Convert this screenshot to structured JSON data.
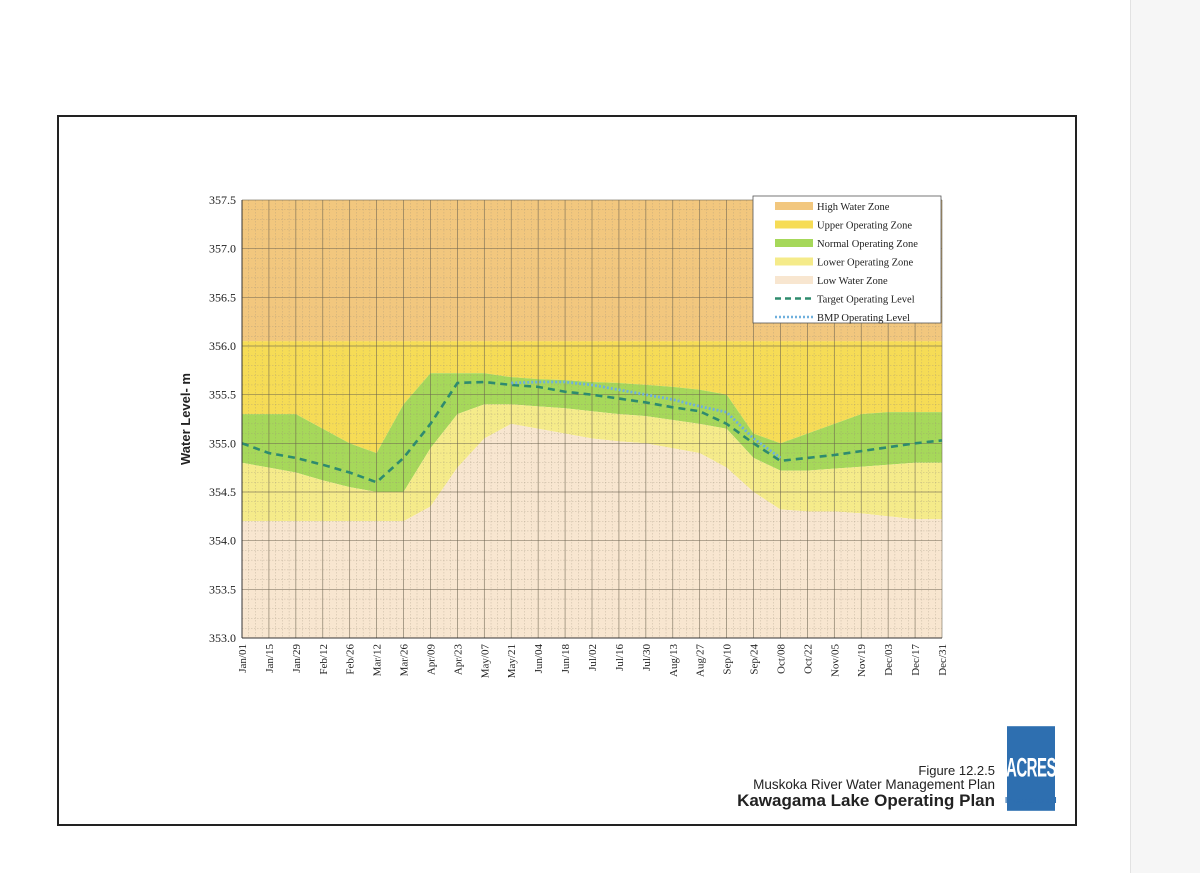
{
  "chart_data": {
    "type": "area",
    "ylabel": "Water Level- m",
    "ylim": [
      353.0,
      357.5
    ],
    "yticks": [
      "353.0",
      "353.5",
      "354.0",
      "354.5",
      "355.0",
      "355.5",
      "356.0",
      "356.5",
      "357.0",
      "357.5"
    ],
    "categories": [
      "Jan/01",
      "Jan/15",
      "Jan/29",
      "Feb/12",
      "Feb/26",
      "Mar/12",
      "Mar/26",
      "Apr/09",
      "Apr/23",
      "May/07",
      "May/21",
      "Jun/04",
      "Jun/18",
      "Jul/02",
      "Jul/16",
      "Jul/30",
      "Aug/13",
      "Aug/27",
      "Sep/10",
      "Sep/24",
      "Oct/08",
      "Oct/22",
      "Nov/05",
      "Nov/19",
      "Dec/03",
      "Dec/17",
      "Dec/31"
    ],
    "grid": true,
    "legend_position": "top-right",
    "zones": [
      {
        "name": "High Water Zone",
        "color": "#f2c77e",
        "lower": [
          356.05,
          356.05,
          356.05,
          356.05,
          356.05,
          356.05,
          356.05,
          356.05,
          356.05,
          356.05,
          356.05,
          356.05,
          356.05,
          356.05,
          356.05,
          356.05,
          356.05,
          356.05,
          356.05,
          356.05,
          356.05,
          356.05,
          356.05,
          356.05,
          356.05,
          356.05,
          356.05
        ]
      },
      {
        "name": "Upper Operating Zone",
        "color": "#f6dc56",
        "lower": [
          355.3,
          355.3,
          355.3,
          355.15,
          355.0,
          354.9,
          355.4,
          355.72,
          355.72,
          355.72,
          355.68,
          355.66,
          355.65,
          355.63,
          355.62,
          355.6,
          355.58,
          355.55,
          355.5,
          355.1,
          355.0,
          355.1,
          355.2,
          355.3,
          355.32,
          355.32,
          355.32
        ]
      },
      {
        "name": "Normal Operating Zone",
        "color": "#a6d85a",
        "lower": [
          354.8,
          354.75,
          354.7,
          354.62,
          354.55,
          354.5,
          354.5,
          354.95,
          355.3,
          355.4,
          355.4,
          355.38,
          355.36,
          355.33,
          355.3,
          355.28,
          355.24,
          355.2,
          355.15,
          354.85,
          354.72,
          354.72,
          354.74,
          354.76,
          354.78,
          354.8,
          354.8
        ]
      },
      {
        "name": "Lower Operating Zone",
        "color": "#f5eb8a",
        "lower": [
          354.2,
          354.2,
          354.2,
          354.2,
          354.2,
          354.2,
          354.2,
          354.35,
          354.75,
          355.05,
          355.2,
          355.15,
          355.1,
          355.05,
          355.02,
          355.0,
          354.95,
          354.9,
          354.75,
          354.5,
          354.32,
          354.3,
          354.3,
          354.28,
          354.25,
          354.22,
          354.22
        ]
      },
      {
        "name": "Low Water Zone",
        "color": "#f8e6d0",
        "lower": [
          353.0,
          353.0,
          353.0,
          353.0,
          353.0,
          353.0,
          353.0,
          353.0,
          353.0,
          353.0,
          353.0,
          353.0,
          353.0,
          353.0,
          353.0,
          353.0,
          353.0,
          353.0,
          353.0,
          353.0,
          353.0,
          353.0,
          353.0,
          353.0,
          353.0,
          353.0,
          353.0
        ]
      }
    ],
    "series": [
      {
        "name": "Target Operating Level",
        "style": "dashed",
        "color": "#2e8b6e",
        "values": [
          355.0,
          354.9,
          354.85,
          354.78,
          354.7,
          354.6,
          354.85,
          355.2,
          355.62,
          355.63,
          355.6,
          355.58,
          355.53,
          355.5,
          355.46,
          355.42,
          355.37,
          355.33,
          355.2,
          355.0,
          354.82,
          354.85,
          354.88,
          354.92,
          354.96,
          355.0,
          355.03
        ]
      },
      {
        "name": "BMP Operating Level",
        "style": "dotted",
        "color": "#6fb0dd",
        "values": [
          null,
          null,
          null,
          null,
          null,
          null,
          null,
          null,
          null,
          null,
          355.62,
          355.63,
          355.63,
          355.6,
          355.55,
          355.5,
          355.45,
          355.38,
          355.32,
          355.05,
          354.85,
          null,
          null,
          null,
          null,
          null,
          null
        ]
      }
    ]
  },
  "caption": {
    "figure_number": "Figure 12.2.5",
    "plan": "Muskoka River Water Management Plan",
    "title": "Kawagama Lake Operating Plan"
  },
  "logo": {
    "text": "ACRES",
    "subtext": "International",
    "color": "#2e6fb0"
  }
}
